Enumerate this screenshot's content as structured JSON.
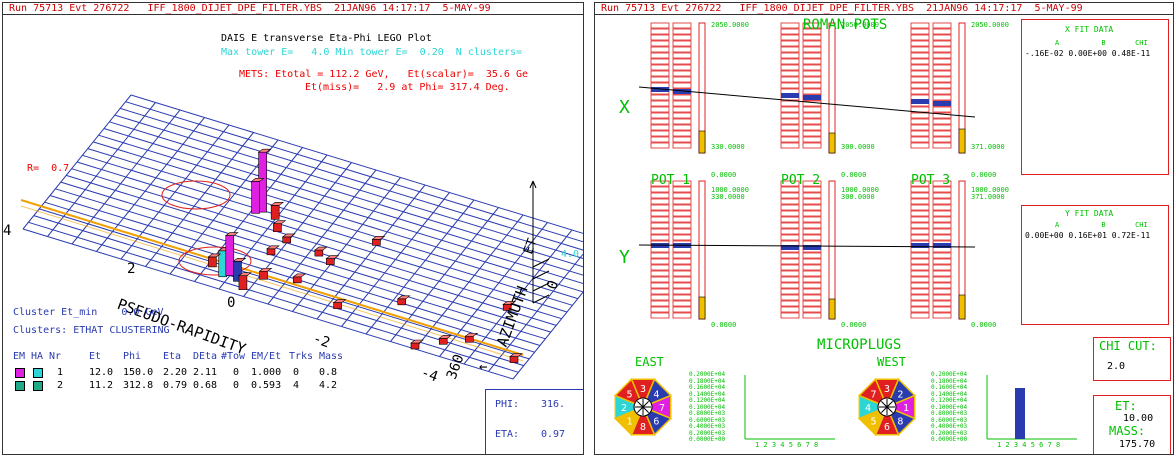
{
  "left": {
    "header": "Run 75713 Evt 276722   IFF_1800_DIJET_DPE_FILTER.YBS  21JAN96 14:17:17  5-MAY-99",
    "title": "DAIS E transverse Eta-Phi LEGO Plot",
    "tower_line": "Max tower E=   4.0 Min tower E=  0.20  N clusters=",
    "mets_line1": "METS: Etotal = 112.2 GeV,   Et(scalar)=  35.6 Ge",
    "mets_line2": "Et(miss)=   2.9 at Phi= 317.4 Deg.",
    "r_label": "R=  0.7",
    "et_axis": "ET",
    "et_max": "4.0",
    "eta_axis": "PSEUDO-RAPIDITY",
    "phi_axis": "AZIMUTH",
    "eta_ticks": [
      "4",
      "2",
      "0",
      "-2",
      "-4"
    ],
    "phi_ticks": [
      "0",
      "360"
    ],
    "cluster_et": "Cluster Et_min    0.0 GeV",
    "clusters": "Clusters: ETHAT CLUSTERING",
    "table_header": [
      "EM",
      "HA",
      "Nr",
      "Et",
      "Phi",
      "Eta",
      "DEta",
      "#Tow",
      "EM/Et",
      "Trks",
      "Mass"
    ],
    "table_rows": [
      [
        "1",
        "12.0",
        "150.0",
        "2.20",
        "2.11",
        "0",
        "1.000",
        "0",
        "0.8"
      ],
      [
        "2",
        "11.2",
        "312.8",
        "0.79",
        "0.68",
        "0",
        "0.593",
        "4",
        "4.2"
      ]
    ],
    "phi_box_label": "PHI:",
    "phi_box_value": "316.",
    "eta_box_label": "ETA:",
    "eta_box_value": "0.97"
  },
  "right": {
    "header": "Run 75713 Evt 276722   IFF_1800_DIJET_DPE_FILTER.YBS  21JAN96 14:17:17  5-MAY-99",
    "roman_pots": "ROMAN POTS",
    "x_label": "X",
    "y_label": "Y",
    "pot_labels": [
      "POT 1",
      "POT 2",
      "POT 3"
    ],
    "x_scale_top": [
      "2050.0000",
      "2050.0000",
      "2050.0000"
    ],
    "x_scale_mid": [
      "330.0000",
      "300.0000",
      "371.0000"
    ],
    "x_scale_bot": [
      "0.0000",
      "0.0000",
      "0.0000"
    ],
    "y_scale_top": [
      "1000.0000",
      "1000.0000",
      "1000.0000"
    ],
    "y_scale_mid": [
      "330.0000",
      "300.0000",
      "371.0000"
    ],
    "y_scale_bot": [
      "0.0000",
      "0.0000",
      "0.0000"
    ],
    "x_fit_title": "X FIT DATA",
    "x_fit_cols": "A          B       CHI",
    "x_fit_vals": "-.16E-02 0.00E+00 0.48E-11",
    "y_fit_title": "Y FIT DATA",
    "y_fit_cols": "A          B       CHI",
    "y_fit_vals": "0.00E+00 0.16E+01 0.72E-11",
    "microplugs": "MICROPLUGS",
    "east": "EAST",
    "west": "WEST",
    "hist_ticks": [
      "0.2000E+04",
      "0.1800E+04",
      "0.1600E+04",
      "0.1400E+04",
      "0.1200E+04",
      "0.1000E+04",
      "0.8000E+03",
      "0.6000E+03",
      "0.4000E+03",
      "0.2000E+03",
      "0.0000E+00"
    ],
    "hist_x": "1 2 3 4 5 6 7 8",
    "east_segments": [
      "3",
      "4",
      "7",
      "6",
      "8",
      "1",
      "2",
      "5"
    ],
    "west_segments": [
      "3",
      "2",
      "1",
      "8",
      "6",
      "5",
      "4",
      "7"
    ],
    "chi_cut_label": "CHI CUT:",
    "chi_cut_value": "2.0",
    "et_label": "ET:",
    "et_value": "10.00",
    "mass_label": "MASS:",
    "mass_value": "175.70",
    "colors": {
      "red": "#e02020",
      "green": "#00c000",
      "blue": "#2a3bb0",
      "yellow": "#f0c000",
      "magenta": "#e020e0",
      "cyan": "#2cd6d6"
    }
  }
}
